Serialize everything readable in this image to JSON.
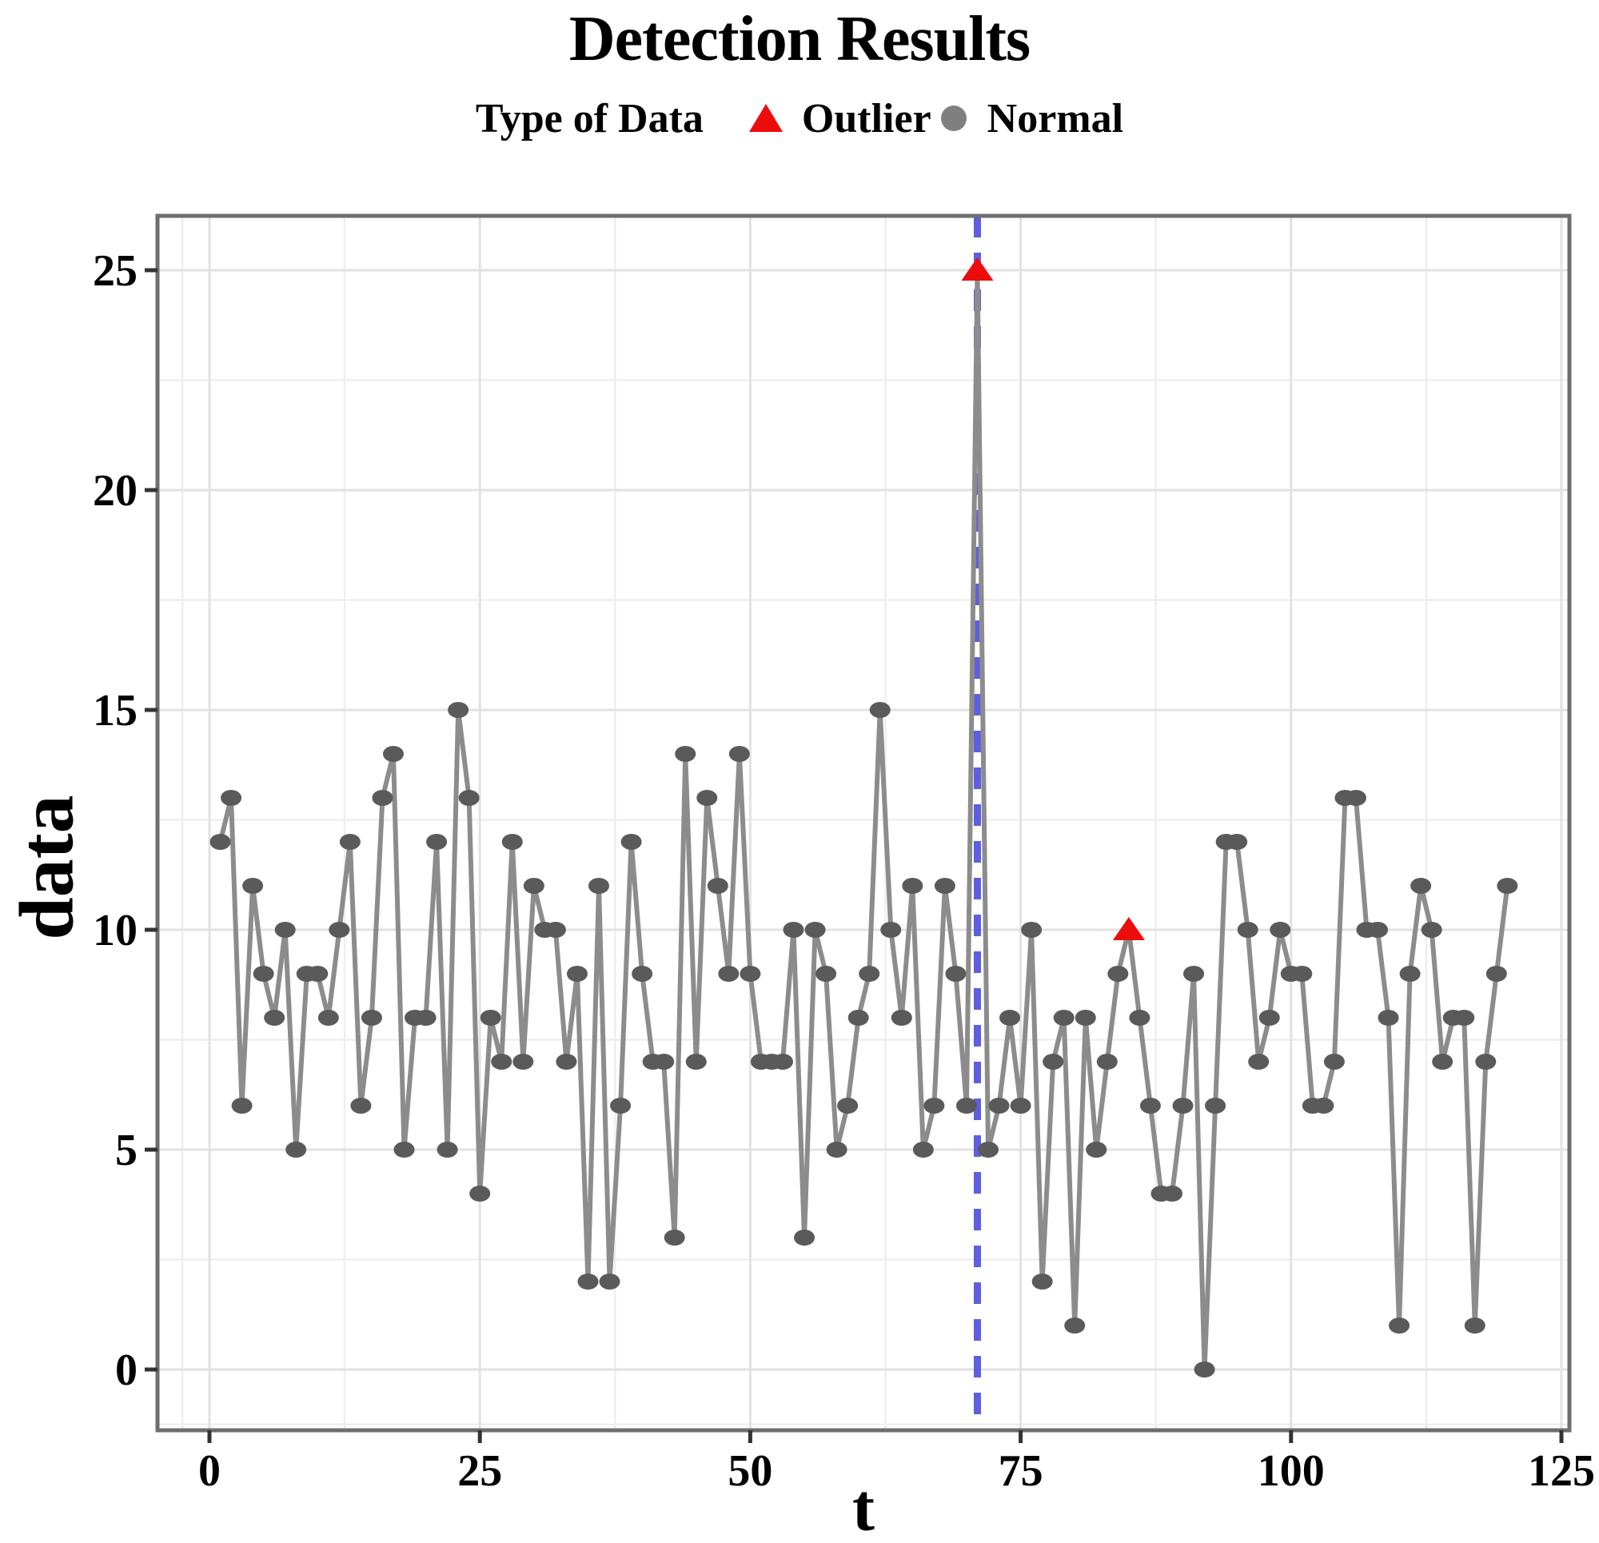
{
  "title": "Detection Results",
  "legend": {
    "label": "Type of Data",
    "items": [
      {
        "label": "Outlier",
        "marker": "triangle-icon"
      },
      {
        "label": "Normal",
        "marker": "dot-icon"
      }
    ]
  },
  "axes": {
    "xlabel": "t",
    "ylabel": "data"
  },
  "colors": {
    "normal": "#5a5a5a",
    "line": "#8c8c8c",
    "outlier": "#ed0c0c",
    "vline": "#5e5ee0",
    "grid_major": "#e2e2e2",
    "grid_minor": "#efefef",
    "border": "#6e6e6e",
    "tick": "#333333",
    "text": "#000000",
    "legend_dot": "#7f7f7f"
  },
  "chart_data": {
    "type": "line",
    "title": "Detection Results",
    "legend_title": "Type of Data",
    "legend_position": "top",
    "xlabel": "t",
    "ylabel": "data",
    "t_start": 1,
    "values": [
      12,
      13,
      6,
      11,
      9,
      8,
      10,
      5,
      9,
      9,
      8,
      10,
      12,
      6,
      8,
      13,
      14,
      5,
      8,
      8,
      12,
      5,
      15,
      13,
      4,
      8,
      7,
      12,
      7,
      11,
      10,
      10,
      7,
      9,
      2,
      11,
      2,
      6,
      12,
      9,
      7,
      7,
      3,
      14,
      7,
      13,
      11,
      9,
      14,
      9,
      7,
      7,
      7,
      10,
      3,
      10,
      9,
      5,
      6,
      8,
      9,
      15,
      10,
      8,
      11,
      5,
      6,
      11,
      9,
      6,
      25,
      5,
      6,
      8,
      6,
      10,
      2,
      7,
      8,
      1,
      8,
      5,
      7,
      9,
      10,
      8,
      6,
      4,
      4,
      6,
      9,
      0,
      6,
      12,
      12,
      10,
      7,
      8,
      10,
      9,
      9,
      6,
      6,
      7,
      13,
      13,
      10,
      10,
      8,
      1,
      9,
      11,
      10,
      7,
      8,
      8,
      1,
      7,
      9,
      11
    ],
    "outlier_t": [
      71,
      85
    ],
    "outlier_values": [
      25,
      10
    ],
    "vline_t": 71,
    "marker_normal": "dot",
    "marker_outlier": "triangle",
    "xticks": [
      0,
      25,
      50,
      75,
      100,
      125
    ],
    "yticks": [
      0,
      5,
      10,
      15,
      20,
      25
    ],
    "xticks_minor": [
      -2.5,
      12.5,
      37.5,
      62.5,
      87.5,
      112.5
    ],
    "yticks_minor": [
      -1.25,
      2.5,
      7.5,
      12.5,
      17.5,
      22.5
    ],
    "xlim": [
      -4.8,
      125.7
    ],
    "ylim": [
      -1.4,
      26.2
    ],
    "grid": "major+minor"
  }
}
